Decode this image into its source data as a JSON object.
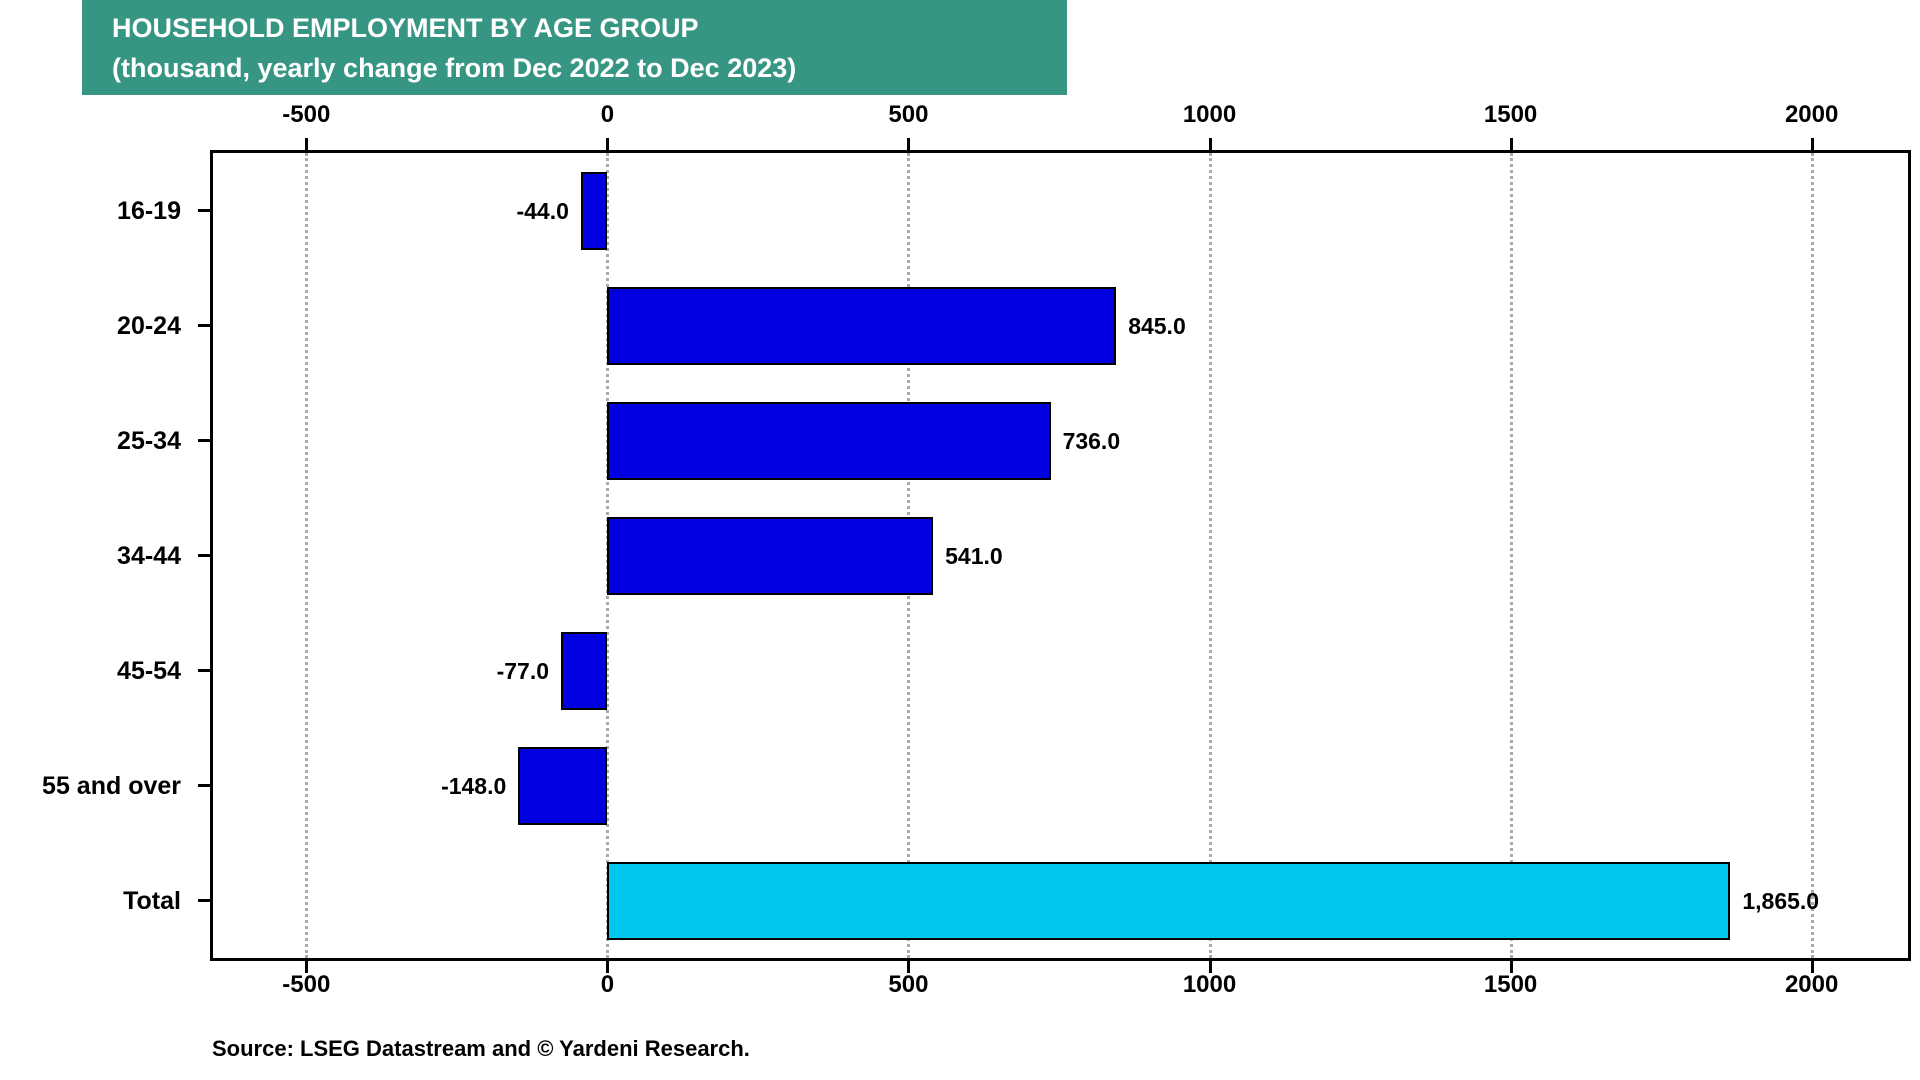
{
  "title": {
    "line1": "HOUSEHOLD EMPLOYMENT BY AGE GROUP",
    "line2": "(thousand, yearly change from Dec 2022 to Dec 2023)"
  },
  "source": "Source: LSEG Datastream and © Yardeni Research.",
  "colors": {
    "title_bg": "#379683",
    "bar_blue": "#0000e0",
    "bar_cyan": "#00c6ef",
    "grid": "#aaaaaa"
  },
  "chart_data": {
    "type": "bar",
    "orientation": "horizontal",
    "title": "HOUSEHOLD EMPLOYMENT BY AGE GROUP (thousand, yearly change from Dec 2022 to Dec 2023)",
    "categories": [
      "16-19",
      "20-24",
      "25-34",
      "34-44",
      "45-54",
      "55 and over",
      "Total"
    ],
    "values": [
      -44.0,
      845.0,
      736.0,
      541.0,
      -77.0,
      -148.0,
      1865.0
    ],
    "value_labels": [
      "-44.0",
      "845.0",
      "736.0",
      "541.0",
      "-77.0",
      "-148.0",
      "1,865.0"
    ],
    "bar_colors": [
      "#0000e0",
      "#0000e0",
      "#0000e0",
      "#0000e0",
      "#0000e0",
      "#0000e0",
      "#00c6ef"
    ],
    "xlim": [
      -655,
      2160
    ],
    "xticks": [
      -500,
      0,
      500,
      1000,
      1500,
      2000
    ],
    "xtick_labels": [
      "-500",
      "0",
      "500",
      "1000",
      "1500",
      "2000"
    ],
    "grid": "dotted-vertical",
    "legend": "none",
    "xlabel": "",
    "ylabel": ""
  }
}
